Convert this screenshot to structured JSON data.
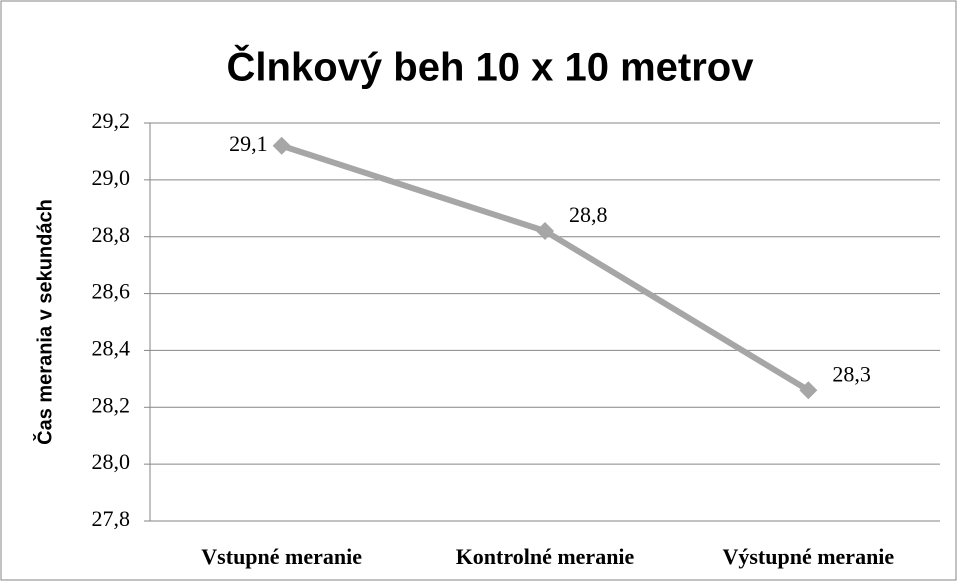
{
  "chart_data": {
    "type": "line",
    "title": "Člnkový beh 10 x 10 metrov",
    "y_label": "Čas merania v sekundách",
    "categories": [
      "Vstupné meranie",
      "Kontrolné meranie",
      "Výstupné meranie"
    ],
    "values": [
      29.12,
      28.82,
      28.26
    ],
    "value_labels": [
      "29,1",
      "28,8",
      "28,3"
    ],
    "color": "#a6a6a6",
    "ylim": [
      27.8,
      29.2
    ],
    "yticks": [
      {
        "value": 27.8,
        "label": "27,8"
      },
      {
        "value": 28.0,
        "label": "28,0"
      },
      {
        "value": 28.2,
        "label": "28,2"
      },
      {
        "value": 28.4,
        "label": "28,4"
      },
      {
        "value": 28.6,
        "label": "28,6"
      },
      {
        "value": 28.8,
        "label": "28,8"
      },
      {
        "value": 29.0,
        "label": "29,0"
      },
      {
        "value": 29.2,
        "label": "29,2"
      }
    ],
    "grid": true
  }
}
